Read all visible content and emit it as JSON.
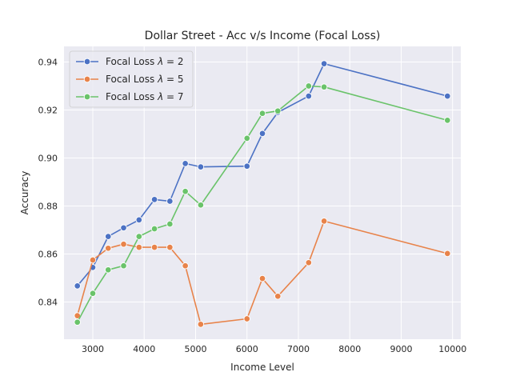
{
  "chart_data": {
    "type": "line",
    "title": "Dollar Street - Acc v/s Income (Focal Loss)",
    "xlabel": "Income Level",
    "ylabel": "Accuracy",
    "xlim": [
      2440,
      10160
    ],
    "ylim": [
      0.8245,
      0.9465
    ],
    "xticks": [
      3000,
      4000,
      5000,
      6000,
      7000,
      8000,
      9000,
      10000
    ],
    "yticks": [
      0.84,
      0.86,
      0.88,
      0.9,
      0.92,
      0.94
    ],
    "ytick_labels": [
      "0.84",
      "0.86",
      "0.88",
      "0.90",
      "0.92",
      "0.94"
    ],
    "grid": true,
    "legend_position": "top-left",
    "series": [
      {
        "name": "Focal Loss",
        "lambda_value": "2",
        "color": "#4c72c4",
        "x": [
          2700,
          3000,
          3300,
          3600,
          3900,
          4200,
          4500,
          4800,
          5100,
          6000,
          6300,
          6600,
          7200,
          7500,
          9900
        ],
        "y": [
          0.8467,
          0.8544,
          0.8673,
          0.8709,
          0.8742,
          0.8827,
          0.882,
          0.8977,
          0.8963,
          0.8966,
          0.9102,
          0.919,
          0.9258,
          0.9393,
          0.9258
        ]
      },
      {
        "name": "Focal Loss",
        "lambda_value": "5",
        "color": "#e8834a",
        "x": [
          2700,
          3000,
          3300,
          3600,
          3900,
          4200,
          4500,
          4800,
          5100,
          6000,
          6300,
          6600,
          7200,
          7500,
          9900
        ],
        "y": [
          0.8343,
          0.8575,
          0.8624,
          0.8641,
          0.8628,
          0.8628,
          0.8628,
          0.8551,
          0.8307,
          0.833,
          0.8498,
          0.8424,
          0.8564,
          0.8737,
          0.8602
        ]
      },
      {
        "name": "Focal Loss",
        "lambda_value": "7",
        "color": "#6ac36a",
        "x": [
          2700,
          3000,
          3300,
          3600,
          3900,
          4200,
          4500,
          4800,
          5100,
          6000,
          6300,
          6600,
          7200,
          7500,
          9900
        ],
        "y": [
          0.8316,
          0.8436,
          0.8534,
          0.8551,
          0.8673,
          0.8705,
          0.8725,
          0.8861,
          0.8804,
          0.9082,
          0.9186,
          0.9196,
          0.93,
          0.9296,
          0.9157
        ]
      }
    ]
  }
}
